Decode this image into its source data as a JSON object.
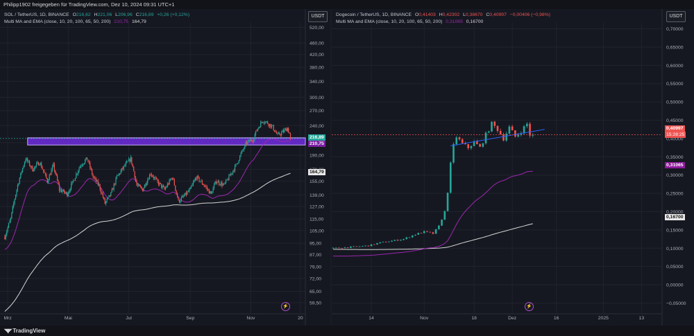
{
  "header": {
    "text": "Philipp1902 freigegeben für TradingView.com, Dez 10, 2024 09:31 UTC+1"
  },
  "footer": {
    "brand": "TradingView",
    "logo_icon": "tradingview-logo-icon"
  },
  "colors": {
    "bg": "#161821",
    "up": "#26a69a",
    "down": "#ef5350",
    "ma_fast": "#9c27b0",
    "ma_slow": "#d8d8d8",
    "zone": "#7b2ff7",
    "trendline": "#2962ff"
  },
  "left": {
    "legend": {
      "title": "SOL / TetherUS, 1D, BINANCE",
      "o_label": "O",
      "o": "216,62",
      "h_label": "H",
      "h": "221,06",
      "l_label": "L",
      "l": "206,96",
      "c_label": "C",
      "c": "216,89",
      "chg": "+0,26 (+0,12%)",
      "study": "Multi MA and EMA (close, 10, 20, 100, 65, 50, 200)",
      "ma1": "210,75",
      "ma2": "164,79"
    },
    "currency": "USDT",
    "price_tags": {
      "last": "216,89",
      "ma_fast": "210,75",
      "ma_slow": "164,79"
    },
    "lightning_icon": "lightning-icon"
  },
  "right": {
    "legend": {
      "title": "Dogecoin / TetherUS, 1D, BINANCE",
      "o_label": "O",
      "o": "0,41403",
      "h_label": "H",
      "h": "0,42302",
      "l_label": "L",
      "l": "0,38670",
      "c_label": "C",
      "c": "0,40997",
      "chg": "−0,00406 (−0,98%)",
      "study": "Multi MA and EMA (close, 10, 20, 100, 65, 50, 200)",
      "ma1": "0,31065",
      "ma2": "0,16700"
    },
    "currency": "USDT",
    "price_tags": {
      "last": "0,40997",
      "countdown": "15:28:25",
      "ma_fast": "0,31065",
      "ma_slow": "0,16700"
    },
    "lightning_icon": "lightning-icon"
  },
  "chart_data": [
    {
      "type": "candlestick",
      "title": "SOL / TetherUS, 1D, BINANCE",
      "scale": "log",
      "y_ticks": [
        "520,00",
        "460,00",
        "420,00",
        "380,00",
        "340,00",
        "300,00",
        "270,00",
        "240,00",
        "210,00",
        "190,00",
        "170,00",
        "155,00",
        "139,00",
        "127,00",
        "115,00",
        "105,00",
        "95,00",
        "87,00",
        "79,00",
        "72,00",
        "65,00",
        "59,50"
      ],
      "y_tick_values": [
        520,
        460,
        420,
        380,
        340,
        300,
        270,
        240,
        210,
        190,
        170,
        155,
        139,
        127,
        115,
        105,
        95,
        87,
        79,
        72,
        65,
        59.5
      ],
      "x_ticks": [
        "Mrz",
        "Mai",
        "Jul",
        "Sep",
        "Nov",
        "20"
      ],
      "x_tick_days": [
        0,
        61,
        122,
        184,
        245,
        295
      ],
      "ylim": [
        56,
        545
      ],
      "xlim_days": [
        -5,
        300
      ],
      "day_zero": "2024-03-01",
      "closes_anchor": [
        [
          -3,
          100
        ],
        [
          3,
          115
        ],
        [
          10,
          150
        ],
        [
          18,
          185
        ],
        [
          25,
          170
        ],
        [
          32,
          180
        ],
        [
          40,
          155
        ],
        [
          46,
          175
        ],
        [
          52,
          145
        ],
        [
          60,
          140
        ],
        [
          66,
          155
        ],
        [
          73,
          175
        ],
        [
          80,
          185
        ],
        [
          86,
          160
        ],
        [
          92,
          150
        ],
        [
          98,
          130
        ],
        [
          104,
          140
        ],
        [
          110,
          160
        ],
        [
          118,
          175
        ],
        [
          124,
          185
        ],
        [
          130,
          150
        ],
        [
          136,
          145
        ],
        [
          144,
          165
        ],
        [
          150,
          155
        ],
        [
          158,
          145
        ],
        [
          166,
          160
        ],
        [
          172,
          132
        ],
        [
          178,
          138
        ],
        [
          184,
          145
        ],
        [
          190,
          160
        ],
        [
          198,
          150
        ],
        [
          205,
          140
        ],
        [
          210,
          155
        ],
        [
          218,
          150
        ],
        [
          223,
          160
        ],
        [
          230,
          175
        ],
        [
          236,
          195
        ],
        [
          241,
          210
        ],
        [
          247,
          215
        ],
        [
          252,
          235
        ],
        [
          257,
          250
        ],
        [
          262,
          245
        ],
        [
          267,
          237
        ],
        [
          272,
          222
        ],
        [
          277,
          228
        ],
        [
          282,
          235
        ],
        [
          285,
          220
        ],
        [
          285,
          216.89
        ]
      ],
      "ema_fast_last": 210.75,
      "ma_slow_last": 164.79,
      "zone": {
        "from_day": 20,
        "to_day": 300,
        "low": 206,
        "high": 218
      },
      "last": 216.89
    },
    {
      "type": "candlestick",
      "title": "Dogecoin / TetherUS, 1D, BINANCE",
      "scale": "linear",
      "y_ticks": [
        "0,70000",
        "0,65000",
        "0,60000",
        "0,55000",
        "0,50000",
        "0,45000",
        "0,40000",
        "0,35000",
        "0,30000",
        "0,25000",
        "0,20000",
        "0,15000",
        "0,10000",
        "0,05000",
        "0,00000",
        "−0,05000"
      ],
      "y_tick_values": [
        0.7,
        0.65,
        0.6,
        0.55,
        0.5,
        0.45,
        0.4,
        0.35,
        0.3,
        0.25,
        0.2,
        0.15,
        0.1,
        0.05,
        0.0,
        -0.05
      ],
      "x_ticks": [
        "14",
        "Nov",
        "18",
        "Dez",
        "16",
        "2025",
        "13"
      ],
      "x_tick_days": [
        13,
        31,
        48,
        61,
        76,
        92,
        105
      ],
      "ylim": [
        -0.07,
        0.72
      ],
      "xlim_days": [
        0,
        112
      ],
      "day_zero": "2024-10-01",
      "closes_anchor": [
        [
          0,
          0.1
        ],
        [
          6,
          0.103
        ],
        [
          12,
          0.107
        ],
        [
          16,
          0.115
        ],
        [
          20,
          0.12
        ],
        [
          24,
          0.125
        ],
        [
          28,
          0.138
        ],
        [
          31,
          0.145
        ],
        [
          34,
          0.14
        ],
        [
          36,
          0.16
        ],
        [
          38,
          0.2
        ],
        [
          39,
          0.255
        ],
        [
          40,
          0.33
        ],
        [
          41,
          0.38
        ],
        [
          42,
          0.405
        ],
        [
          44,
          0.385
        ],
        [
          46,
          0.375
        ],
        [
          48,
          0.39
        ],
        [
          50,
          0.375
        ],
        [
          52,
          0.41
        ],
        [
          54,
          0.44
        ],
        [
          56,
          0.425
        ],
        [
          58,
          0.4
        ],
        [
          60,
          0.43
        ],
        [
          62,
          0.405
        ],
        [
          64,
          0.42
        ],
        [
          66,
          0.44
        ],
        [
          67,
          0.41
        ],
        [
          68,
          0.40997
        ]
      ],
      "ema_fast_last": 0.31065,
      "ma_slow_last": 0.167,
      "trendline": {
        "from": [
          40,
          0.38
        ],
        "to": [
          72,
          0.425
        ]
      },
      "last": 0.40997
    }
  ]
}
